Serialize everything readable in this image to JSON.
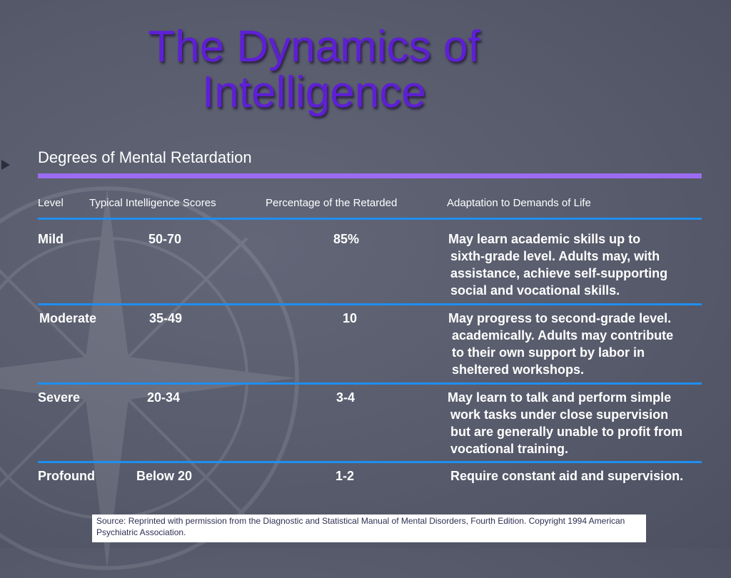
{
  "title_line1": "The Dynamics of",
  "title_line2": "Intelligence",
  "subtitle": "Degrees of Mental Retardation",
  "headers": [
    "Level",
    "Typical Intelligence Scores",
    "Percentage of the Retarded",
    "Adaptation to Demands of Life"
  ],
  "rows": [
    {
      "level": "Mild",
      "scores": "50-70",
      "percentage": "85%",
      "adaptation": [
        "May learn academic skills up to",
        "sixth-grade level. Adults may, with",
        "assistance, achieve self-supporting",
        "social and vocational skills."
      ]
    },
    {
      "level": "Moderate",
      "scores": "35-49",
      "percentage": "10",
      "adaptation": [
        "May progress to second-grade level.",
        "academically. Adults may contribute",
        "to their own support by labor in",
        "sheltered workshops."
      ]
    },
    {
      "level": "Severe",
      "scores": "20-34",
      "percentage": "3-4",
      "adaptation": [
        "May learn to talk and perform simple",
        "work tasks under close supervision",
        "but are generally unable to profit from",
        "vocational training."
      ]
    },
    {
      "level": "Profound",
      "scores": "Below 20",
      "percentage": "1-2",
      "adaptation": [
        "Require constant aid and supervision."
      ]
    }
  ],
  "source_line1": "Source: Reprinted with permission from the Diagnostic and Statistical Manual of Mental Disorders, Fourth Edition. Copyright 1994 American",
  "source_line2": "Psychiatric Association.",
  "colors": {
    "background": "#575b6b",
    "title": "#5e1fd6",
    "accent_bar": "#9b6cf2",
    "row_rule": "#1f8ef1"
  },
  "icons": [
    "compass-rose-watermark",
    "slide-nav-arrow"
  ]
}
